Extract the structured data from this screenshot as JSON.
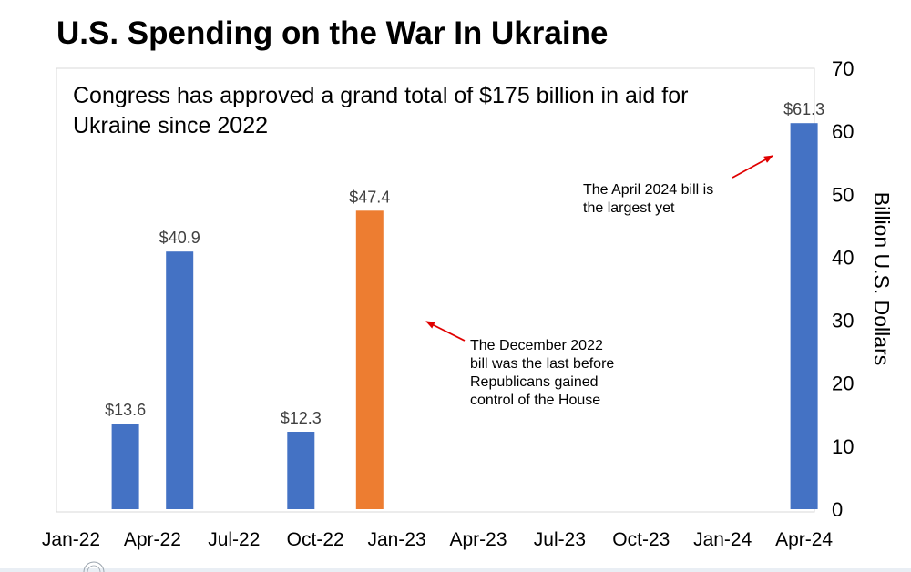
{
  "chart_data": {
    "type": "bar",
    "title": "U.S. Spending on the War In Ukraine",
    "subtitle_lines": [
      "Congress has approved a grand total of $175 billion in aid for",
      "Ukraine since 2022"
    ],
    "ylabel": "Billion U.S. Dollars",
    "ylim": [
      0,
      70
    ],
    "yticks": [
      "0",
      "10",
      "20",
      "30",
      "40",
      "50",
      "60",
      "70"
    ],
    "x_tick_labels": [
      "Jan-22",
      "Apr-22",
      "Jul-22",
      "Oct-22",
      "Jan-23",
      "Apr-23",
      "Jul-23",
      "Oct-23",
      "Jan-24",
      "Apr-24"
    ],
    "bars": [
      {
        "x": "2022-03-01",
        "value": 13.6,
        "label": "$13.6",
        "color": "#4472c4"
      },
      {
        "x": "2022-05-01",
        "value": 40.9,
        "label": "$40.9",
        "color": "#4472c4"
      },
      {
        "x": "2022-09-15",
        "value": 12.3,
        "label": "$12.3",
        "color": "#4472c4"
      },
      {
        "x": "2022-12-01",
        "value": 47.4,
        "label": "$47.4",
        "color": "#ed7d31"
      },
      {
        "x": "2024-04-01",
        "value": 61.3,
        "label": "$61.3",
        "color": "#4472c4"
      }
    ],
    "annotations": [
      {
        "lines": [
          "The April 2024 bill is",
          "the largest yet"
        ],
        "arrow_color": "#e00000"
      },
      {
        "lines": [
          "The December 2022",
          "bill was the last before",
          "Republicans gained",
          "control of the House"
        ],
        "arrow_color": "#e00000"
      }
    ],
    "grid": false,
    "y_axis_side": "right"
  }
}
